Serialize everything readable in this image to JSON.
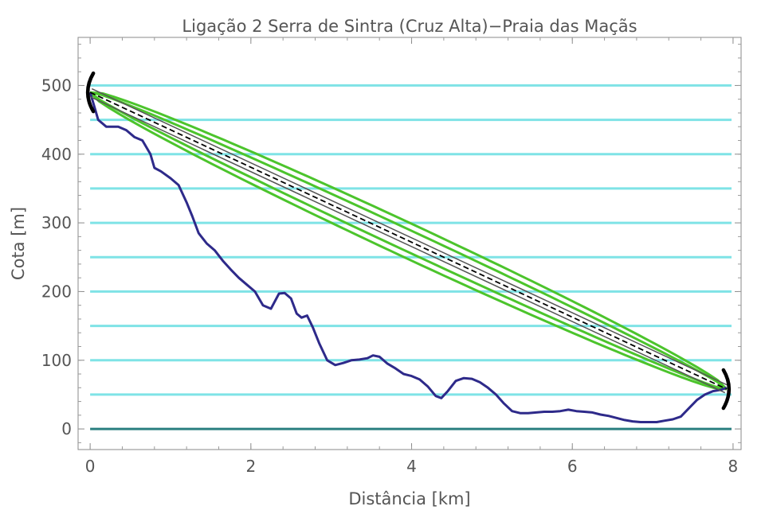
{
  "chart_data": {
    "type": "line",
    "title": "Ligação 2 Serra de Sintra (Cruz Alta)−Praia das Maçãs",
    "xlabel": "Distância [km]",
    "ylabel": "Cota [m]",
    "xlim": [
      -0.15,
      8.1
    ],
    "ylim": [
      -30,
      570
    ],
    "x_ticks": [
      "0",
      "2",
      "4",
      "6",
      "8"
    ],
    "y_ticks": [
      "0",
      "100",
      "200",
      "300",
      "400",
      "500"
    ],
    "grid": false,
    "elevation_levels": [
      0,
      50,
      100,
      150,
      200,
      250,
      300,
      350,
      400,
      450,
      500
    ],
    "series": [
      {
        "role": "terrain",
        "color": "#2e2a8a",
        "x": [
          0,
          0.05,
          0.1,
          0.2,
          0.35,
          0.45,
          0.55,
          0.65,
          0.75,
          0.8,
          0.88,
          1.0,
          1.1,
          1.2,
          1.27,
          1.35,
          1.45,
          1.55,
          1.65,
          1.75,
          1.85,
          1.95,
          2.05,
          2.15,
          2.25,
          2.35,
          2.42,
          2.5,
          2.57,
          2.63,
          2.7,
          2.77,
          2.85,
          2.95,
          3.05,
          3.15,
          3.25,
          3.35,
          3.45,
          3.52,
          3.6,
          3.7,
          3.8,
          3.9,
          4.0,
          4.1,
          4.2,
          4.3,
          4.37,
          4.45,
          4.55,
          4.65,
          4.75,
          4.85,
          4.95,
          5.05,
          5.15,
          5.25,
          5.35,
          5.45,
          5.55,
          5.65,
          5.75,
          5.85,
          5.95,
          6.05,
          6.15,
          6.25,
          6.35,
          6.45,
          6.55,
          6.65,
          6.75,
          6.85,
          6.95,
          7.05,
          7.15,
          7.25,
          7.35,
          7.45,
          7.55,
          7.65,
          7.75,
          7.85,
          7.92
        ],
        "y": [
          490,
          470,
          450,
          440,
          440,
          435,
          425,
          420,
          400,
          380,
          375,
          365,
          355,
          330,
          310,
          285,
          270,
          260,
          245,
          232,
          220,
          210,
          200,
          180,
          175,
          197,
          198,
          190,
          168,
          162,
          165,
          148,
          125,
          100,
          93,
          96,
          100,
          101,
          103,
          107,
          105,
          95,
          88,
          80,
          77,
          72,
          62,
          48,
          45,
          55,
          70,
          74,
          73,
          68,
          60,
          50,
          37,
          26,
          23,
          23,
          24,
          25,
          25,
          26,
          28,
          26,
          25,
          24,
          21,
          19,
          16,
          13,
          11,
          10,
          10,
          10,
          12,
          14,
          18,
          30,
          42,
          50,
          55,
          57,
          60
        ]
      },
      {
        "role": "line-of-sight",
        "color": "#000000",
        "x": [
          0,
          7.92
        ],
        "y": [
          490,
          58
        ]
      }
    ],
    "fresnel_zone_color": "#4cc42c",
    "elevation_level_color": "#7fe3e6",
    "sea_level_color": "#2a7f80"
  }
}
